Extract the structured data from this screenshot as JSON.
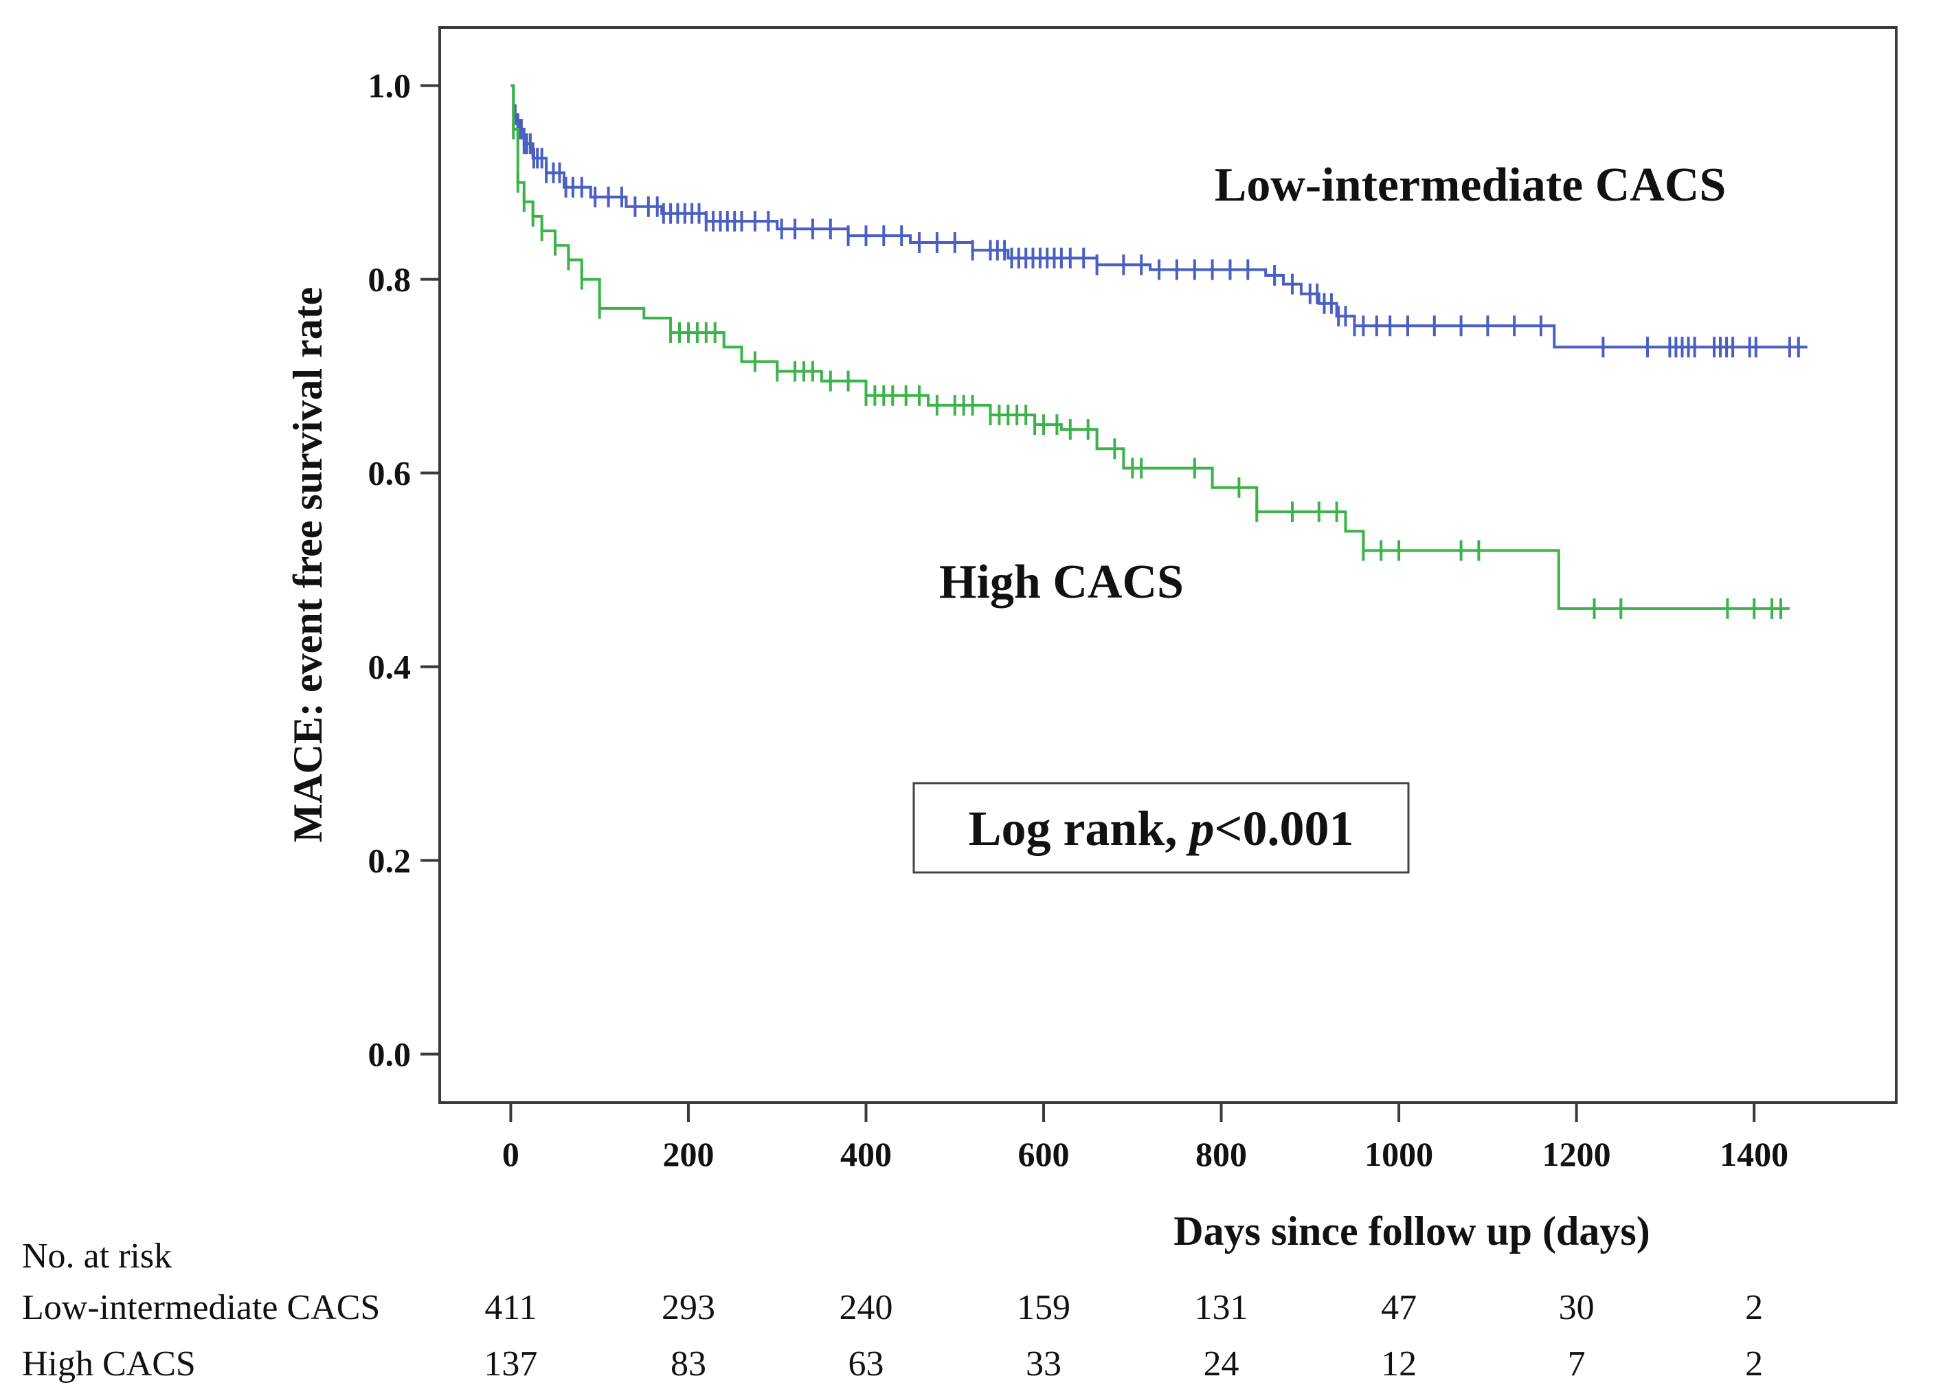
{
  "chart_data": {
    "type": "line",
    "title": "",
    "xlabel": "Days since follow up (days)",
    "ylabel": "MACE: event free survival rate",
    "xlim": [
      -80,
      1560
    ],
    "ylim": [
      -0.05,
      1.06
    ],
    "x_ticks": [
      0,
      200,
      400,
      600,
      800,
      1000,
      1200,
      1400
    ],
    "x_tick_labels": [
      "0",
      "200",
      "400",
      "600",
      "800",
      "1000",
      "1200",
      "1400"
    ],
    "y_ticks": [
      0.0,
      0.2,
      0.4,
      0.6,
      0.8,
      1.0
    ],
    "y_tick_labels": [
      "0.0",
      "0.2",
      "0.4",
      "0.6",
      "0.8",
      "1.0"
    ],
    "grid": false,
    "annotation": {
      "prefix": "Log rank, ",
      "italic": "p",
      "suffix": "<0.001"
    },
    "series": [
      {
        "name": "Low-intermediate CACS",
        "color": "#4a5fc1",
        "step_points": [
          [
            0,
            1.0
          ],
          [
            3,
            0.97
          ],
          [
            8,
            0.955
          ],
          [
            15,
            0.94
          ],
          [
            25,
            0.925
          ],
          [
            40,
            0.91
          ],
          [
            60,
            0.895
          ],
          [
            90,
            0.885
          ],
          [
            130,
            0.875
          ],
          [
            170,
            0.868
          ],
          [
            220,
            0.86
          ],
          [
            300,
            0.852
          ],
          [
            380,
            0.845
          ],
          [
            450,
            0.838
          ],
          [
            520,
            0.83
          ],
          [
            560,
            0.822
          ],
          [
            660,
            0.815
          ],
          [
            720,
            0.81
          ],
          [
            850,
            0.804
          ],
          [
            870,
            0.795
          ],
          [
            890,
            0.785
          ],
          [
            910,
            0.775
          ],
          [
            930,
            0.762
          ],
          [
            950,
            0.752
          ],
          [
            1175,
            0.73
          ],
          [
            1460,
            0.73
          ]
        ],
        "censor_x": [
          5,
          8,
          10,
          12,
          15,
          18,
          22,
          26,
          30,
          35,
          40,
          48,
          55,
          62,
          70,
          80,
          95,
          110,
          125,
          140,
          155,
          165,
          172,
          180,
          188,
          196,
          204,
          212,
          220,
          228,
          236,
          244,
          252,
          260,
          275,
          290,
          305,
          320,
          340,
          360,
          380,
          400,
          420,
          440,
          460,
          480,
          500,
          520,
          540,
          548,
          556,
          564,
          572,
          580,
          588,
          596,
          604,
          612,
          620,
          630,
          645,
          660,
          690,
          710,
          730,
          750,
          770,
          790,
          810,
          830,
          860,
          880,
          900,
          908,
          916,
          924,
          932,
          940,
          950,
          960,
          975,
          990,
          1010,
          1040,
          1070,
          1100,
          1130,
          1160,
          1230,
          1280,
          1305,
          1312,
          1319,
          1326,
          1333,
          1355,
          1362,
          1369,
          1376,
          1395,
          1402,
          1440,
          1450
        ]
      },
      {
        "name": "High CACS",
        "color": "#3cb34a",
        "step_points": [
          [
            0,
            1.0
          ],
          [
            3,
            0.955
          ],
          [
            8,
            0.9
          ],
          [
            15,
            0.88
          ],
          [
            25,
            0.865
          ],
          [
            35,
            0.85
          ],
          [
            50,
            0.835
          ],
          [
            65,
            0.82
          ],
          [
            80,
            0.8
          ],
          [
            100,
            0.77
          ],
          [
            150,
            0.76
          ],
          [
            180,
            0.745
          ],
          [
            240,
            0.73
          ],
          [
            260,
            0.715
          ],
          [
            300,
            0.705
          ],
          [
            350,
            0.695
          ],
          [
            400,
            0.68
          ],
          [
            470,
            0.67
          ],
          [
            540,
            0.66
          ],
          [
            590,
            0.65
          ],
          [
            620,
            0.645
          ],
          [
            660,
            0.625
          ],
          [
            690,
            0.605
          ],
          [
            790,
            0.585
          ],
          [
            840,
            0.56
          ],
          [
            940,
            0.54
          ],
          [
            960,
            0.52
          ],
          [
            1180,
            0.46
          ],
          [
            1440,
            0.46
          ]
        ],
        "censor_x": [
          3,
          8,
          15,
          25,
          35,
          50,
          65,
          80,
          100,
          180,
          190,
          200,
          210,
          220,
          230,
          275,
          300,
          320,
          330,
          340,
          360,
          380,
          400,
          410,
          420,
          430,
          445,
          460,
          480,
          500,
          510,
          520,
          540,
          550,
          560,
          570,
          580,
          590,
          600,
          615,
          630,
          650,
          680,
          700,
          710,
          770,
          820,
          840,
          880,
          910,
          930,
          960,
          980,
          1000,
          1070,
          1090,
          1220,
          1250,
          1370,
          1400,
          1420,
          1430
        ]
      }
    ],
    "risk_table": {
      "heading": "No. at risk",
      "columns_x": [
        0,
        200,
        400,
        600,
        800,
        1000,
        1200,
        1400
      ],
      "rows": [
        {
          "label": "Low-intermediate  CACS",
          "values": [
            "411",
            "293",
            "240",
            "159",
            "131",
            "47",
            "30",
            "2"
          ]
        },
        {
          "label": "High  CACS",
          "values": [
            "137",
            "83",
            "63",
            "33",
            "24",
            "12",
            "7",
            "2"
          ]
        }
      ]
    }
  }
}
